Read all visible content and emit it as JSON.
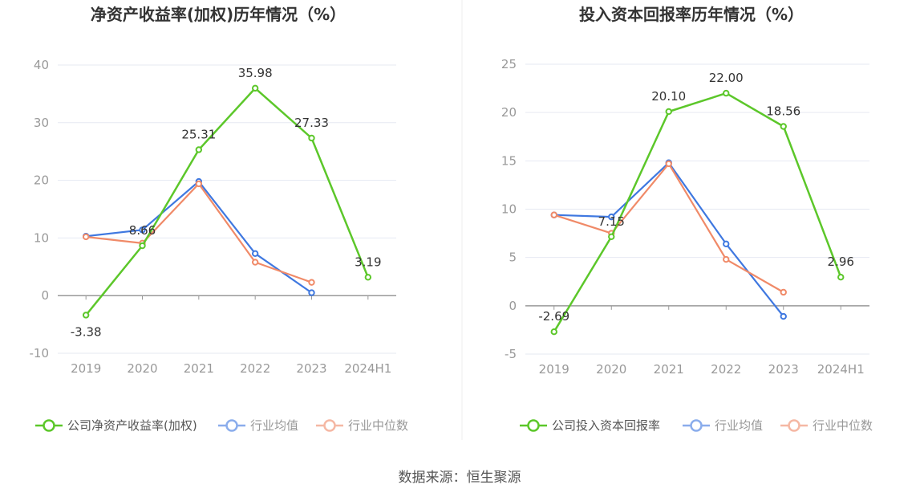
{
  "source_label": "数据来源：恒生聚源",
  "chart_data": [
    {
      "type": "line",
      "title": "净资产收益率(加权)历年情况（%）",
      "categories": [
        "2019",
        "2020",
        "2021",
        "2022",
        "2023",
        "2024H1"
      ],
      "ylim": [
        -10,
        40
      ],
      "yticks": [
        -10,
        0,
        10,
        20,
        30,
        40
      ],
      "grid": true,
      "legend_position": "bottom",
      "series": [
        {
          "name": "公司净资产收益率(加权)",
          "color": "#5cc72a",
          "values": [
            -3.38,
            8.66,
            25.31,
            35.98,
            27.33,
            3.19
          ],
          "labels": [
            "-3.38",
            "8.66",
            "25.31",
            "35.98",
            "27.33",
            "3.19"
          ]
        },
        {
          "name": "行业均值",
          "color": "#3f78e0",
          "values": [
            10.3,
            11.4,
            19.8,
            7.3,
            0.5,
            null
          ]
        },
        {
          "name": "行业中位数",
          "color": "#f08a68",
          "values": [
            10.2,
            9.1,
            19.4,
            5.8,
            2.3,
            null
          ]
        }
      ]
    },
    {
      "type": "line",
      "title": "投入资本回报率历年情况（%）",
      "categories": [
        "2019",
        "2020",
        "2021",
        "2022",
        "2023",
        "2024H1"
      ],
      "ylim": [
        -5,
        25
      ],
      "yticks": [
        -5,
        0,
        5,
        10,
        15,
        20,
        25
      ],
      "grid": true,
      "legend_position": "bottom",
      "series": [
        {
          "name": "公司投入资本回报率",
          "color": "#5cc72a",
          "values": [
            -2.69,
            7.15,
            20.1,
            22.0,
            18.56,
            2.96
          ],
          "labels": [
            "-2.69",
            "7.15",
            "20.10",
            "22.00",
            "18.56",
            "2.96"
          ]
        },
        {
          "name": "行业均值",
          "color": "#3f78e0",
          "values": [
            9.4,
            9.2,
            14.8,
            6.4,
            -1.1,
            null
          ]
        },
        {
          "name": "行业中位数",
          "color": "#f08a68",
          "values": [
            9.4,
            7.5,
            14.7,
            4.8,
            1.4,
            null
          ]
        }
      ]
    }
  ]
}
